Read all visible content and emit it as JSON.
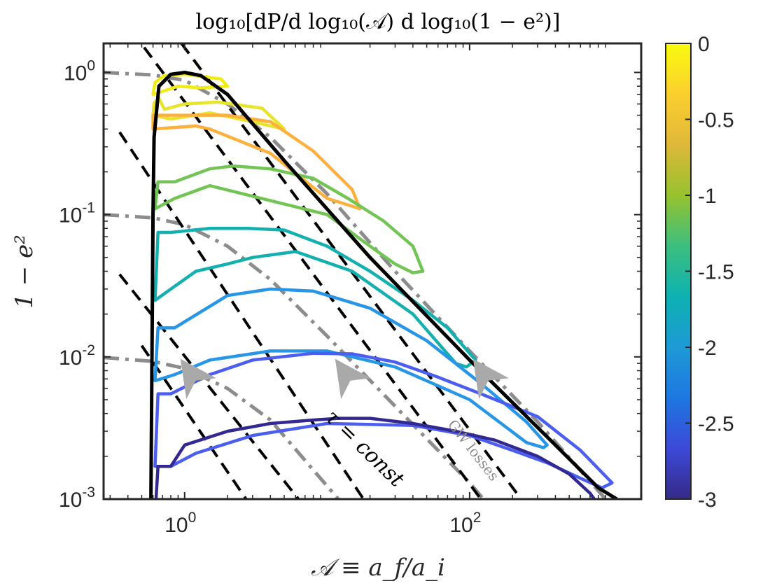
{
  "chart_data": {
    "type": "line",
    "title": "log₁₀[dP/d log₁₀(𝒜) d log₁₀(1 − e²)]",
    "xlabel": "𝒜 ≡ a_f/a_i",
    "ylabel": "1 − e²",
    "xscale": "log",
    "yscale": "log",
    "xlim": [
      0.27,
      1600
    ],
    "ylim": [
      0.001,
      1.6
    ],
    "x_ticks": [
      {
        "value": 1,
        "base": "10",
        "exp": "0"
      },
      {
        "value": 100,
        "base": "10",
        "exp": "2"
      }
    ],
    "y_ticks": [
      {
        "value": 1,
        "base": "10",
        "exp": "0"
      },
      {
        "value": 0.1,
        "base": "10",
        "exp": "-1"
      },
      {
        "value": 0.01,
        "base": "10",
        "exp": "-2"
      },
      {
        "value": 0.001,
        "base": "10",
        "exp": "-3"
      }
    ],
    "colorbar": {
      "range": [
        -3,
        0
      ],
      "colormap": "parula",
      "ticks": [
        "0",
        "-0.5",
        "-1",
        "-1.5",
        "-2",
        "-2.5",
        "-3"
      ],
      "stops": [
        "#352a87",
        "#3c49d8",
        "#1e77e1",
        "#1e9ad6",
        "#0db1b2",
        "#3cbf7e",
        "#97c22e",
        "#dfb83a",
        "#fbcf2e",
        "#f9fb0e"
      ]
    },
    "contours": [
      {
        "level": 0.0,
        "color": "#f0ec14",
        "points": [
          [
            0.6,
            0.7
          ],
          [
            0.62,
            0.85
          ],
          [
            0.72,
            0.95
          ],
          [
            1.0,
            0.97
          ],
          [
            1.8,
            0.9
          ],
          [
            2.0,
            0.8
          ],
          [
            1.3,
            0.78
          ],
          [
            0.9,
            0.8
          ],
          [
            0.6,
            0.7
          ]
        ]
      },
      {
        "level": -0.25,
        "color": "#e8e42c",
        "points": [
          [
            0.6,
            0.5
          ],
          [
            0.61,
            0.61
          ],
          [
            0.66,
            0.66
          ],
          [
            0.72,
            0.55
          ],
          [
            1.0,
            0.6
          ],
          [
            1.7,
            0.62
          ],
          [
            3.5,
            0.56
          ],
          [
            5.0,
            0.4
          ],
          [
            3.0,
            0.45
          ],
          [
            1.5,
            0.52
          ],
          [
            0.8,
            0.47
          ],
          [
            0.6,
            0.5
          ]
        ]
      },
      {
        "level": -0.5,
        "color": "#fbb13c",
        "points": [
          [
            0.6,
            0.4
          ],
          [
            0.6,
            0.5
          ],
          [
            0.8,
            0.5
          ],
          [
            1.1,
            0.5
          ],
          [
            2.0,
            0.5
          ],
          [
            4.0,
            0.45
          ],
          [
            8.0,
            0.28
          ],
          [
            15.0,
            0.15
          ],
          [
            17.0,
            0.11
          ],
          [
            13.0,
            0.12
          ],
          [
            10.0,
            0.13
          ],
          [
            4.0,
            0.27
          ],
          [
            1.5,
            0.4
          ],
          [
            1.2,
            0.42
          ],
          [
            0.6,
            0.4
          ]
        ]
      },
      {
        "level": -1.0,
        "color": "#72c555",
        "points": [
          [
            0.62,
            0.11
          ],
          [
            0.65,
            0.17
          ],
          [
            0.85,
            0.17
          ],
          [
            1.5,
            0.21
          ],
          [
            2.2,
            0.22
          ],
          [
            4.0,
            0.21
          ],
          [
            8.0,
            0.18
          ],
          [
            14.0,
            0.13
          ],
          [
            25.0,
            0.09
          ],
          [
            40.0,
            0.06
          ],
          [
            47.0,
            0.04
          ],
          [
            40.0,
            0.039
          ],
          [
            30.0,
            0.045
          ],
          [
            20.0,
            0.06
          ],
          [
            10.0,
            0.1
          ],
          [
            1.5,
            0.16
          ],
          [
            0.85,
            0.13
          ],
          [
            0.62,
            0.11
          ]
        ]
      },
      {
        "level": -1.5,
        "color": "#14b0b0",
        "points": [
          [
            0.62,
            0.025
          ],
          [
            0.65,
            0.075
          ],
          [
            0.8,
            0.075
          ],
          [
            1.5,
            0.08
          ],
          [
            2.8,
            0.08
          ],
          [
            5.0,
            0.078
          ],
          [
            10.0,
            0.06
          ],
          [
            20.0,
            0.04
          ],
          [
            40.0,
            0.025
          ],
          [
            70.0,
            0.016
          ],
          [
            110.0,
            0.0095
          ],
          [
            95.0,
            0.0085
          ],
          [
            80.0,
            0.009
          ],
          [
            40.0,
            0.02
          ],
          [
            15.0,
            0.04
          ],
          [
            6.0,
            0.055
          ],
          [
            3.0,
            0.05
          ],
          [
            2.0,
            0.045
          ],
          [
            1.2,
            0.04
          ],
          [
            0.8,
            0.03
          ],
          [
            0.62,
            0.025
          ]
        ]
      },
      {
        "level": -2.0,
        "color": "#2796e6",
        "points": [
          [
            0.62,
            0.0068
          ],
          [
            0.65,
            0.016
          ],
          [
            0.85,
            0.016
          ],
          [
            2.0,
            0.027
          ],
          [
            4.0,
            0.03
          ],
          [
            8.0,
            0.029
          ],
          [
            20.0,
            0.022
          ],
          [
            50.0,
            0.013
          ],
          [
            120.0,
            0.0065
          ],
          [
            250.0,
            0.0035
          ],
          [
            350.0,
            0.0024
          ],
          [
            330.0,
            0.0023
          ],
          [
            250.0,
            0.0025
          ],
          [
            100.0,
            0.005
          ],
          [
            30.0,
            0.0085
          ],
          [
            10.0,
            0.011
          ],
          [
            4.0,
            0.011
          ],
          [
            1.5,
            0.0095
          ],
          [
            0.85,
            0.0075
          ],
          [
            0.62,
            0.0068
          ]
        ]
      },
      {
        "level": -2.5,
        "color": "#4b5ef0",
        "points": [
          [
            0.62,
            0.0017
          ],
          [
            0.65,
            0.0055
          ],
          [
            0.8,
            0.0055
          ],
          [
            1.5,
            0.0075
          ],
          [
            3.0,
            0.0095
          ],
          [
            8.0,
            0.0106
          ],
          [
            15.0,
            0.0105
          ],
          [
            30.0,
            0.0092
          ],
          [
            60.0,
            0.0072
          ],
          [
            120.0,
            0.0055
          ],
          [
            300.0,
            0.0038
          ],
          [
            600.0,
            0.0022
          ],
          [
            1000.0,
            0.0013
          ],
          [
            850.0,
            0.0012
          ],
          [
            600.0,
            0.0014
          ],
          [
            350.0,
            0.0018
          ],
          [
            200.0,
            0.0022
          ],
          [
            100.0,
            0.0028
          ],
          [
            40.0,
            0.0033
          ],
          [
            10.0,
            0.0034
          ],
          [
            3.0,
            0.0028
          ],
          [
            1.2,
            0.0021
          ],
          [
            0.8,
            0.0017
          ],
          [
            0.62,
            0.0017
          ]
        ]
      },
      {
        "level": -3.0,
        "color": "#322891",
        "points": [
          [
            0.63,
            0.001
          ],
          [
            0.65,
            0.0017
          ],
          [
            0.8,
            0.0017
          ],
          [
            1.0,
            0.0024
          ],
          [
            2.0,
            0.003
          ],
          [
            4.0,
            0.0034
          ],
          [
            8.0,
            0.0036
          ],
          [
            12.0,
            0.0037
          ],
          [
            20.0,
            0.0037
          ],
          [
            40.0,
            0.0034
          ],
          [
            80.0,
            0.003
          ],
          [
            150.0,
            0.0026
          ],
          [
            300.0,
            0.002
          ],
          [
            500.0,
            0.0015
          ],
          [
            700.0,
            0.0011
          ],
          [
            750.0,
            0.001
          ]
        ]
      }
    ],
    "envelope": {
      "color": "#000000",
      "points": [
        [
          0.58,
          0.001
        ],
        [
          0.59,
          0.01
        ],
        [
          0.6,
          0.1
        ],
        [
          0.61,
          0.35
        ],
        [
          0.66,
          0.8
        ],
        [
          0.8,
          0.97
        ],
        [
          1.0,
          1.0
        ],
        [
          1.3,
          0.95
        ],
        [
          2.0,
          0.7
        ],
        [
          5.0,
          0.24
        ],
        [
          20.0,
          0.05
        ],
        [
          100.0,
          0.0095
        ],
        [
          400.0,
          0.0024
        ],
        [
          800.0,
          0.0012
        ],
        [
          1080.0,
          0.001
        ]
      ]
    },
    "tau_const_lines": {
      "color": "#000000",
      "dash": "dashed",
      "lines": [
        [
          [
            0.52,
            1.5
          ],
          [
            120.0,
            0.001
          ]
        ],
        [
          [
            0.35,
            0.38
          ],
          [
            18.0,
            0.001
          ]
        ],
        [
          [
            0.35,
            0.038
          ],
          [
            6.3,
            0.001
          ]
        ],
        [
          [
            0.5,
            0.012
          ],
          [
            2.7,
            0.001
          ]
        ],
        [
          [
            0.95,
            1.6
          ],
          [
            230.0,
            0.001
          ]
        ]
      ]
    },
    "gw_loss_curves": {
      "color": "#8c8c8c",
      "dash": "dash-dot",
      "curves": [
        {
          "points": [
            [
              0.27,
              1.0
            ],
            [
              0.6,
              0.96
            ],
            [
              1.0,
              0.88
            ],
            [
              2.0,
              0.6
            ],
            [
              4.0,
              0.35
            ],
            [
              10.0,
              0.14
            ],
            [
              30.0,
              0.04
            ],
            [
              100.0,
              0.011
            ],
            [
              300.0,
              0.0035
            ],
            [
              900.0,
              0.001
            ]
          ]
        },
        {
          "points": [
            [
              0.27,
              0.1
            ],
            [
              0.6,
              0.095
            ],
            [
              1.0,
              0.085
            ],
            [
              2.0,
              0.06
            ],
            [
              4.0,
              0.035
            ],
            [
              10.0,
              0.014
            ],
            [
              30.0,
              0.0045
            ],
            [
              100.0,
              0.0013
            ],
            [
              125.0,
              0.001
            ]
          ]
        },
        {
          "points": [
            [
              0.27,
              0.0099
            ],
            [
              0.6,
              0.0093
            ],
            [
              1.0,
              0.0083
            ],
            [
              2.0,
              0.006
            ],
            [
              4.0,
              0.0036
            ],
            [
              8.0,
              0.0016
            ],
            [
              12.0,
              0.001
            ]
          ]
        }
      ]
    },
    "arrows": [
      {
        "x": 1.15,
        "y": 0.0072,
        "color": "#a9a9a9"
      },
      {
        "x": 14.0,
        "y": 0.0072,
        "color": "#a9a9a9"
      },
      {
        "x": 130.0,
        "y": 0.0072,
        "color": "#a9a9a9"
      }
    ],
    "annotations": [
      {
        "text": "τ = const",
        "x": 17.0,
        "y": 0.0021,
        "rotate": 44,
        "color": "#000000",
        "size": 30,
        "italic": true
      },
      {
        "text": "GW losses",
        "x": 100.0,
        "y": 0.0021,
        "rotate": 52,
        "color": "#8c8c8c",
        "size": 20,
        "italic": false
      }
    ]
  }
}
